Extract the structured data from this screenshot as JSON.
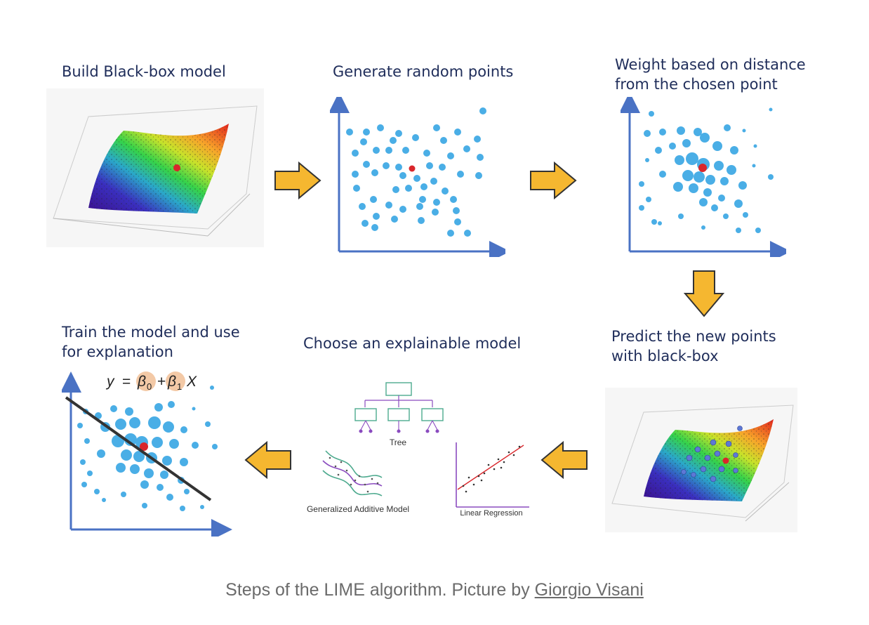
{
  "steps": {
    "build": {
      "title": "Build Black-box model"
    },
    "generate": {
      "title": "Generate random points"
    },
    "weight": {
      "title_line1": "Weight based on distance",
      "title_line2": "from the chosen point"
    },
    "predict": {
      "title_line1": "Predict the new points",
      "title_line2": "with black-box"
    },
    "choose": {
      "title": "Choose an explainable model",
      "tree_label": "Tree",
      "gam_label": "Generalized Additive Model",
      "linreg_label": "Linear Regression"
    },
    "train": {
      "title_line1": "Train the model and use",
      "title_line2": "for explanation",
      "equation": {
        "y": "y",
        "eq": "=",
        "beta0": "β",
        "sub0": "0",
        "plus": "+",
        "beta1": "β",
        "sub1": "1",
        "x": "X"
      }
    }
  },
  "caption": {
    "text": "Steps of the LIME algorithm. Picture by ",
    "link_text": "Giorgio Visani"
  },
  "colors": {
    "title": "#1f2d5a",
    "point": "#4aaee6",
    "axis": "#4a72c4",
    "highlight": "#d9262b",
    "arrow_fill": "#f5b730",
    "arrow_stroke": "#333333",
    "coef_circle": "#f3c9a6"
  },
  "icons": [
    "surface-plot-icon",
    "arrow-right-icon",
    "arrow-down-icon",
    "arrow-left-icon",
    "decision-tree-icon",
    "gam-icon",
    "linear-regression-icon"
  ]
}
